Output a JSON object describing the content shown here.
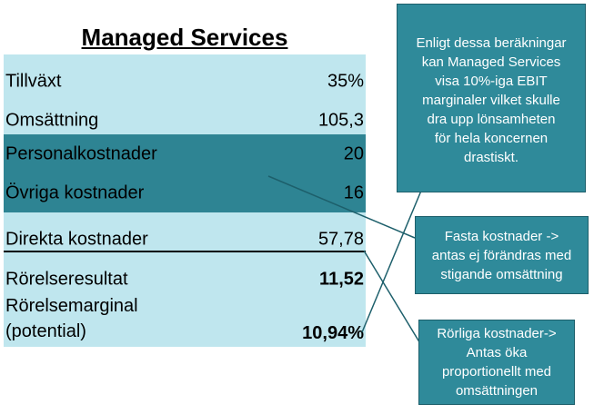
{
  "title": "Managed Services",
  "rows": [
    {
      "label": "Tillväxt",
      "value": "35%"
    },
    {
      "label": "Omsättning",
      "value": "105,3"
    },
    {
      "label": "Personalkostnader",
      "value": "20"
    },
    {
      "label": "Övriga kostnader",
      "value": "16"
    },
    {
      "label": "Direkta kostnader",
      "value": "57,78"
    },
    {
      "label": "Rörelseresultat",
      "value": "11,52"
    },
    {
      "label_line1": "Rörelsemarginal",
      "label_line2": "(potential)",
      "value": "10,94%"
    }
  ],
  "callouts": {
    "ebit": {
      "lines": [
        "Enligt dessa beräkningar",
        "kan Managed Services",
        "visa 10%-iga EBIT",
        "marginaler vilket skulle",
        "dra upp lönsamheten",
        "för hela koncernen",
        "drastiskt."
      ]
    },
    "fixed_costs": {
      "lines": [
        "Fasta kostnader ->",
        "antas ej förändras med",
        "stigande omsättning"
      ]
    },
    "variable_costs": {
      "lines": [
        "Rörliga kostnader->",
        "Antas öka",
        "proportionellt med",
        "omsättningen"
      ]
    }
  },
  "colors": {
    "table_light": "#bfe6ee",
    "table_dark": "#2e8493",
    "callout_fill": "#2f8a9a",
    "connector": "#1d5f6b"
  }
}
